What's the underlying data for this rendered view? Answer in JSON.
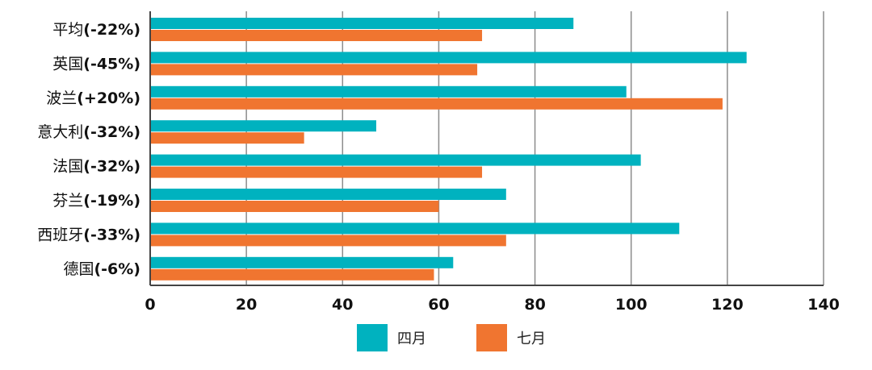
{
  "chart_data": {
    "type": "bar",
    "orientation": "horizontal",
    "title": "",
    "xlabel": "",
    "ylabel": "",
    "xlim": [
      0,
      140
    ],
    "xticks": [
      0,
      20,
      40,
      60,
      80,
      100,
      120,
      140
    ],
    "grid": "vertical",
    "legend_position": "bottom",
    "categories": [
      {
        "name": "平均",
        "pct": "(-22%)"
      },
      {
        "name": "英国",
        "pct": "(-45%)"
      },
      {
        "name": "波兰",
        "pct": "(+20%)"
      },
      {
        "name": "意大利",
        "pct": "(-32%)"
      },
      {
        "name": "法国",
        "pct": "(-32%)"
      },
      {
        "name": "芬兰",
        "pct": "(-19%)"
      },
      {
        "name": "西班牙",
        "pct": "(-33%)"
      },
      {
        "name": "德国",
        "pct": "(-6%)"
      }
    ],
    "series": [
      {
        "name": "四月",
        "color": "#00b2bf",
        "values": [
          88,
          124,
          99,
          47,
          102,
          74,
          110,
          63
        ]
      },
      {
        "name": "七月",
        "color": "#f07530",
        "values": [
          69,
          68,
          119,
          32,
          69,
          60,
          74,
          59
        ]
      }
    ]
  }
}
